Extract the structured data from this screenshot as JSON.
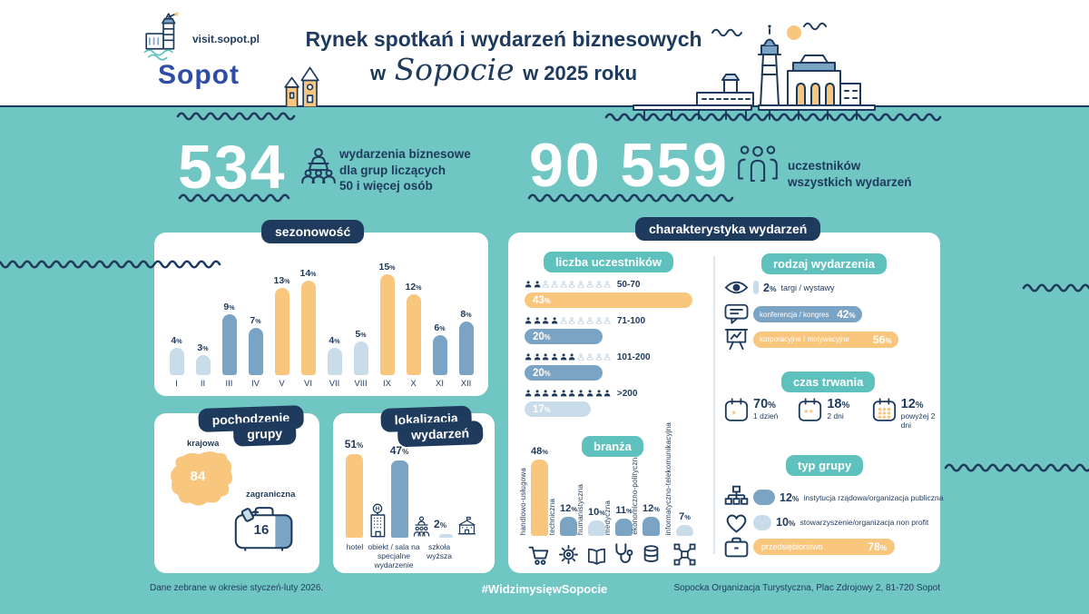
{
  "colors": {
    "teal": "#70c6c3",
    "navy": "#1e3a5c",
    "orange": "#f9c67e",
    "blue": "#7ba3c3",
    "pale": "#c9dcea",
    "badge_teal": "#5fc1be",
    "brand_blue": "#2e4da6",
    "white": "#ffffff"
  },
  "header": {
    "site_label": "visit.sopot.pl",
    "brand": "Sopot",
    "title_line1": "Rynek spotkań i wydarzeń biznesowych",
    "title_w": "w",
    "title_city": "Sopocie",
    "title_year": "w 2025 roku"
  },
  "stats": {
    "events": {
      "value": "534",
      "icon": "presenter-icon",
      "desc1": "wydarzenia biznesowe",
      "desc2": "dla grup liczących",
      "desc3": "50 i więcej osób"
    },
    "participants": {
      "value": "90 559",
      "icon": "people-icon",
      "desc1": "uczestników",
      "desc2": "wszystkich wydarzeń"
    }
  },
  "seasonality": {
    "title": "sezonowość",
    "months": [
      "I",
      "II",
      "III",
      "IV",
      "V",
      "VI",
      "VII",
      "VIII",
      "IX",
      "X",
      "XI",
      "XII"
    ],
    "values": [
      4,
      3,
      9,
      7,
      13,
      14,
      4,
      5,
      15,
      12,
      6,
      8
    ],
    "labels": [
      "4%",
      "3%",
      "9%",
      "7%",
      "13%",
      "14%",
      "4%",
      "5%",
      "15%",
      "12%",
      "6%",
      "8%"
    ],
    "palette": [
      "pale",
      "pale",
      "blue",
      "blue",
      "orange",
      "orange",
      "pale",
      "pale",
      "orange",
      "orange",
      "blue",
      "blue"
    ]
  },
  "origin": {
    "title1": "pochodzenie",
    "title2": "grupy",
    "domestic": {
      "label": "krajowa",
      "display": "84%",
      "value": 84,
      "icon": "poland-map"
    },
    "foreign": {
      "label": "zagraniczna",
      "display": "16%",
      "value": 16,
      "icon": "suitcase-icon"
    }
  },
  "location": {
    "title1": "lokalizacja",
    "title2": "wydarzeń",
    "bars": [
      {
        "label": "hotel",
        "value": 51,
        "display": "51%",
        "color": "orange",
        "icon": "hotel-icon"
      },
      {
        "label": "obiekt / sala na specjalne wydarzenie",
        "value": 47,
        "display": "47%",
        "color": "blue",
        "icon": "venue-icon"
      },
      {
        "label": "szkoła wyższa",
        "value": 2,
        "display": "2%",
        "color": "pale",
        "icon": "university-icon"
      }
    ]
  },
  "characteristics": {
    "title": "charakterystyka wydarzeń",
    "participants": {
      "title": "liczba uczestników",
      "rows": [
        {
          "range": "50-70",
          "value": 43,
          "display": "43%",
          "color": "orange",
          "filled": 2,
          "total": 10
        },
        {
          "range": "71-100",
          "value": 20,
          "display": "20%",
          "color": "blue",
          "filled": 4,
          "total": 10
        },
        {
          "range": "101-200",
          "value": 20,
          "display": "20%",
          "color": "blue",
          "filled": 6,
          "total": 10
        },
        {
          "range": ">200",
          "value": 17,
          "display": "17%",
          "color": "pale",
          "filled": 10,
          "total": 10
        }
      ]
    },
    "industry": {
      "title": "branża",
      "bars": [
        {
          "label": "handlowo-usługowa",
          "value": 48,
          "display": "48%",
          "color": "orange",
          "icon": "cart-icon"
        },
        {
          "label": "techniczna",
          "value": 12,
          "display": "12%",
          "color": "blue",
          "icon": "gear-icon"
        },
        {
          "label": "humanistyczna",
          "value": 10,
          "display": "10%",
          "color": "pale",
          "icon": "book-icon"
        },
        {
          "label": "medyczna",
          "value": 11,
          "display": "11%",
          "color": "blue",
          "icon": "stethoscope-icon"
        },
        {
          "label": "ekonomiczno-polityczna",
          "value": 12,
          "display": "12%",
          "color": "blue",
          "icon": "coins-icon"
        },
        {
          "label": "informatyczno-telekomunikacyjna",
          "value": 7,
          "display": "7%",
          "color": "pale",
          "icon": "network-icon"
        }
      ]
    },
    "event_type": {
      "title": "rodzaj wydarzenia",
      "rows": [
        {
          "label": "targi / wystawy",
          "value": 2,
          "display": "2%",
          "color": "pale",
          "icon": "eye-icon",
          "text": "outside"
        },
        {
          "label": "konferencja / kongres",
          "value": 42,
          "display": "42%",
          "color": "blue",
          "icon": "chat-icon",
          "text": "inside"
        },
        {
          "label": "korporacyjne / motywacyjne",
          "value": 56,
          "display": "56%",
          "color": "orange",
          "icon": "presentation-icon",
          "text": "inside"
        }
      ]
    },
    "duration": {
      "title": "czas trwania",
      "items": [
        {
          "display": "70%",
          "value": 70,
          "label": "1 dzień",
          "icon": "calendar-icon",
          "dots": 1
        },
        {
          "display": "18%",
          "value": 18,
          "label": "2 dni",
          "icon": "calendar-icon",
          "dots": 2
        },
        {
          "display": "12%",
          "value": 12,
          "label": "powyżej 2 dni",
          "icon": "calendar-icon",
          "dots": 9
        }
      ]
    },
    "group_type": {
      "title": "typ grupy",
      "rows": [
        {
          "label": "instytucja rządowa/organizacja publiczna",
          "value": 12,
          "display": "12%",
          "color": "blue",
          "icon": "org-chart-icon",
          "text": "outside"
        },
        {
          "label": "stowarzyszenie/organizacja non profit",
          "value": 10,
          "display": "10%",
          "color": "pale",
          "icon": "heart-icon",
          "text": "outside"
        },
        {
          "label": "przedsiębiorstwo",
          "value": 78,
          "display": "78%",
          "color": "orange",
          "icon": "briefcase-icon",
          "text": "inside"
        }
      ]
    }
  },
  "footer": {
    "left": "Dane zebrane w okresie styczeń-luty 2026.",
    "center": "#WidzimysięwSopocie",
    "right": "Sopocka Organizacja Turystyczna, Plac Zdrojowy 2, 81-720 Sopot"
  },
  "chart_data": [
    {
      "type": "bar",
      "title": "sezonowość",
      "categories": [
        "I",
        "II",
        "III",
        "IV",
        "V",
        "VI",
        "VII",
        "VIII",
        "IX",
        "X",
        "XI",
        "XII"
      ],
      "values": [
        4,
        3,
        9,
        7,
        13,
        14,
        4,
        5,
        15,
        12,
        6,
        8
      ],
      "unit": "%",
      "ylim": [
        0,
        15
      ],
      "grid": false
    },
    {
      "type": "pie",
      "title": "pochodzenie grupy",
      "categories": [
        "krajowa",
        "zagraniczna"
      ],
      "values": [
        84,
        16
      ],
      "unit": "%"
    },
    {
      "type": "bar",
      "title": "lokalizacja wydarzeń",
      "categories": [
        "hotel",
        "obiekt / sala na specjalne wydarzenie",
        "szkoła wyższa"
      ],
      "values": [
        51,
        47,
        2
      ],
      "unit": "%"
    },
    {
      "type": "bar",
      "title": "liczba uczestników",
      "categories": [
        "50-70",
        "71-100",
        "101-200",
        ">200"
      ],
      "values": [
        43,
        20,
        20,
        17
      ],
      "unit": "%"
    },
    {
      "type": "bar",
      "title": "branża",
      "categories": [
        "handlowo-usługowa",
        "techniczna",
        "humanistyczna",
        "medyczna",
        "ekonomiczno-polityczna",
        "informatyczno-telekomunikacyjna"
      ],
      "values": [
        48,
        12,
        10,
        11,
        12,
        7
      ],
      "unit": "%"
    },
    {
      "type": "bar",
      "title": "rodzaj wydarzenia",
      "categories": [
        "targi / wystawy",
        "konferencja / kongres",
        "korporacyjne / motywacyjne"
      ],
      "values": [
        2,
        42,
        56
      ],
      "unit": "%"
    },
    {
      "type": "bar",
      "title": "czas trwania",
      "categories": [
        "1 dzień",
        "2 dni",
        "powyżej 2 dni"
      ],
      "values": [
        70,
        18,
        12
      ],
      "unit": "%"
    },
    {
      "type": "bar",
      "title": "typ grupy",
      "categories": [
        "instytucja rządowa/organizacja publiczna",
        "stowarzyszenie/organizacja non profit",
        "przedsiębiorstwo"
      ],
      "values": [
        12,
        10,
        78
      ],
      "unit": "%"
    }
  ]
}
